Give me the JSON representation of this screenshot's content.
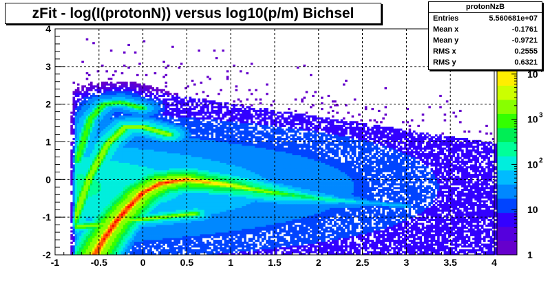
{
  "chart_data": {
    "type": "heatmap",
    "title": "zFit - log(I(protonN)) versus log10(p/m) Bichsel",
    "xlabel": "",
    "ylabel": "",
    "xlim": [
      -1,
      4
    ],
    "ylim": [
      -2,
      4
    ],
    "x_ticks": [
      "-1",
      "-0.5",
      "0",
      "0.5",
      "1",
      "1.5",
      "2",
      "2.5",
      "3",
      "3.5",
      "4"
    ],
    "y_ticks": [
      "-2",
      "-1",
      "0",
      "1",
      "2",
      "3",
      "4"
    ],
    "grid": true,
    "z_scale": "log",
    "z_range": [
      1,
      100000
    ],
    "colorbar_ticks": [
      "1",
      "10",
      "10",
      "10",
      "10",
      "10"
    ],
    "colorbar_exponents": [
      "",
      "",
      "2",
      "3",
      "4",
      "5"
    ],
    "bands": [
      {
        "name": "main",
        "points": [
          [
            -0.55,
            -2.0
          ],
          [
            -0.45,
            -1.6
          ],
          [
            -0.3,
            -1.1
          ],
          [
            -0.15,
            -0.7
          ],
          [
            0.0,
            -0.35
          ],
          [
            0.2,
            -0.1
          ],
          [
            0.5,
            0.0
          ],
          [
            1.0,
            -0.15
          ],
          [
            1.5,
            -0.35
          ],
          [
            2.0,
            -0.5
          ],
          [
            2.5,
            -0.6
          ],
          [
            3.0,
            -0.7
          ]
        ],
        "peak_log10_counts": 4.7
      },
      {
        "name": "second",
        "points": [
          [
            -0.8,
            -1.2
          ],
          [
            -0.6,
            0.1
          ],
          [
            -0.4,
            0.95
          ],
          [
            -0.2,
            1.4
          ],
          [
            0.0,
            1.4
          ],
          [
            0.3,
            1.2
          ]
        ],
        "peak_log10_counts": 3.4
      },
      {
        "name": "third",
        "points": [
          [
            -0.75,
            0.5
          ],
          [
            -0.6,
            1.6
          ],
          [
            -0.45,
            2.0
          ],
          [
            -0.25,
            2.05
          ],
          [
            0.0,
            1.9
          ]
        ],
        "peak_log10_counts": 3.0
      },
      {
        "name": "low",
        "points": [
          [
            -0.75,
            -1.25
          ],
          [
            -0.5,
            -1.2
          ],
          [
            -0.2,
            -1.1
          ],
          [
            0.2,
            -1.0
          ],
          [
            0.6,
            -0.9
          ]
        ],
        "peak_log10_counts": 3.3
      }
    ]
  },
  "stats_box": {
    "name": "protonNzB",
    "rows": [
      {
        "label": "Entries",
        "value": "5.560681e+07"
      },
      {
        "label": "Mean x",
        "value": "-0.1761"
      },
      {
        "label": "Mean y",
        "value": "-0.9721"
      },
      {
        "label": "RMS x",
        "value": "0.2555"
      },
      {
        "label": "RMS y",
        "value": "0.6321"
      }
    ]
  },
  "colors": {
    "palette": [
      "#6600cc",
      "#5500dd",
      "#3300ff",
      "#0044ff",
      "#0088ff",
      "#00bbff",
      "#00eedd",
      "#00ff99",
      "#00ee55",
      "#33ff00",
      "#88ff00",
      "#ccff00",
      "#ffee00",
      "#ffaa00",
      "#ff5500",
      "#ff0000"
    ]
  }
}
